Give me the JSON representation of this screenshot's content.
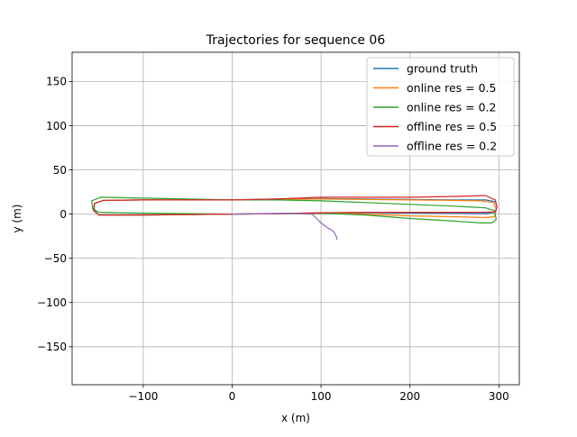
{
  "chart_data": {
    "type": "line",
    "title": "Trajectories for sequence 06",
    "xlabel": "x (m)",
    "ylabel": "y (m)",
    "xlim": [
      -180,
      323
    ],
    "ylim": [
      -193,
      183
    ],
    "xticks": [
      -100,
      0,
      100,
      200,
      300
    ],
    "yticks": [
      -150,
      -100,
      -50,
      0,
      50,
      100,
      150
    ],
    "xtick_labels": [
      "−100",
      "0",
      "100",
      "200",
      "300"
    ],
    "ytick_labels": [
      "−150",
      "−100",
      "−50",
      "0",
      "50",
      "100",
      "150"
    ],
    "grid": true,
    "legend_position": "top-right",
    "series": [
      {
        "name": "ground truth",
        "color": "#1f77b4",
        "x": [
          0,
          50,
          100,
          150,
          200,
          250,
          285,
          296,
          298,
          296,
          285,
          250,
          200,
          150,
          100,
          50,
          0,
          -50,
          -100,
          -145,
          -155,
          -155,
          -150,
          -100,
          -50,
          0
        ],
        "y": [
          0,
          0.5,
          1,
          1.5,
          1.2,
          1,
          0.5,
          2,
          8,
          14,
          16,
          16,
          16.5,
          17,
          17.5,
          17,
          16,
          16,
          16,
          15.5,
          12,
          4,
          -1,
          -1,
          -0.5,
          0
        ]
      },
      {
        "name": "online res = 0.5",
        "color": "#ff7f0e",
        "x": [
          0,
          50,
          100,
          150,
          200,
          250,
          285,
          295,
          297,
          294,
          280,
          250,
          200,
          150,
          100,
          50,
          0,
          -50,
          -100,
          -145,
          -155,
          -156,
          -150,
          -100,
          -50,
          0
        ],
        "y": [
          0,
          0.5,
          1,
          0,
          -2,
          -3,
          -4,
          -3,
          5,
          13,
          15,
          15.5,
          16,
          16.5,
          17,
          16.5,
          16,
          16,
          16,
          15.5,
          12,
          4,
          -1,
          -1,
          -0.5,
          0
        ]
      },
      {
        "name": "online res = 0.2",
        "color": "#2ca02c",
        "x": [
          0,
          50,
          100,
          150,
          200,
          250,
          280,
          292,
          297,
          295,
          285,
          250,
          200,
          150,
          100,
          50,
          0,
          -50,
          -100,
          -148,
          -158,
          -157,
          -150,
          -100,
          -50,
          0
        ],
        "y": [
          0,
          0.5,
          1,
          -1,
          -5,
          -8,
          -10,
          -10,
          -6,
          4,
          7,
          9,
          11,
          13,
          15,
          16,
          16,
          17,
          18,
          19,
          15,
          6,
          2,
          1,
          0.5,
          0
        ]
      },
      {
        "name": "offline res = 0.5",
        "color": "#d62728",
        "x": [
          0,
          50,
          100,
          150,
          200,
          250,
          285,
          296,
          298,
          296,
          285,
          250,
          200,
          150,
          100,
          50,
          0,
          -50,
          -100,
          -145,
          -155,
          -156,
          -150,
          -100,
          -50,
          0
        ],
        "y": [
          0,
          0.5,
          1.5,
          2,
          2,
          2,
          2,
          2.5,
          8,
          16,
          21,
          20,
          19,
          19,
          19,
          17,
          16,
          16,
          16,
          15.5,
          12,
          4,
          -1,
          -1,
          -0.5,
          0
        ]
      },
      {
        "name": "offline res = 0.2",
        "color": "#9467bd",
        "x": [
          0,
          30,
          60,
          90,
          95,
          100,
          104,
          108,
          112,
          115,
          117,
          118
        ],
        "y": [
          0,
          0.5,
          1,
          0,
          -5,
          -10,
          -13,
          -16,
          -18,
          -21,
          -25,
          -29
        ]
      }
    ]
  }
}
